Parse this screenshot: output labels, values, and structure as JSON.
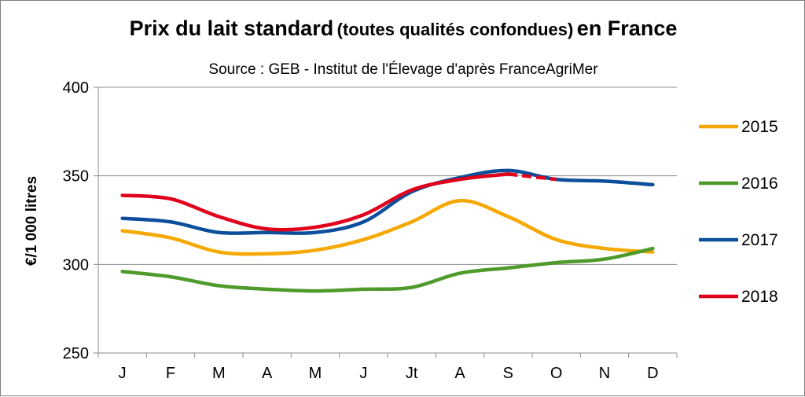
{
  "chart_data": {
    "type": "line",
    "title_main": "Prix du lait standard",
    "title_paren": "(toutes qualités confondues)",
    "title_suffix": "en France",
    "subtitle": "Source : GEB - Institut de l'Élevage d'après FranceAgriMer",
    "ylabel": "€/1 000 litres",
    "xlabel": "",
    "ylim": [
      250,
      400
    ],
    "yticks": [
      250,
      300,
      350,
      400
    ],
    "grid": "horizontal",
    "legend_position": "right",
    "categories": [
      "J",
      "F",
      "M",
      "A",
      "M",
      "J",
      "Jt",
      "A",
      "S",
      "O",
      "N",
      "D"
    ],
    "series": [
      {
        "name": "2015",
        "color": "#f5a800",
        "values": [
          319,
          315,
          307,
          306,
          308,
          314,
          324,
          336,
          327,
          314,
          309,
          307
        ]
      },
      {
        "name": "2016",
        "color": "#4e9a2a",
        "values": [
          296,
          293,
          288,
          286,
          285,
          286,
          287,
          295,
          298,
          301,
          303,
          309
        ]
      },
      {
        "name": "2017",
        "color": "#0b4f9c",
        "values": [
          326,
          324,
          318,
          318,
          318,
          324,
          341,
          349,
          353,
          348,
          347,
          345
        ]
      },
      {
        "name": "2018",
        "color": "#e0001b",
        "values": [
          339,
          337,
          327,
          320,
          321,
          328,
          342,
          348,
          351,
          348,
          null,
          null
        ],
        "estimated_from_index": 8
      }
    ]
  }
}
